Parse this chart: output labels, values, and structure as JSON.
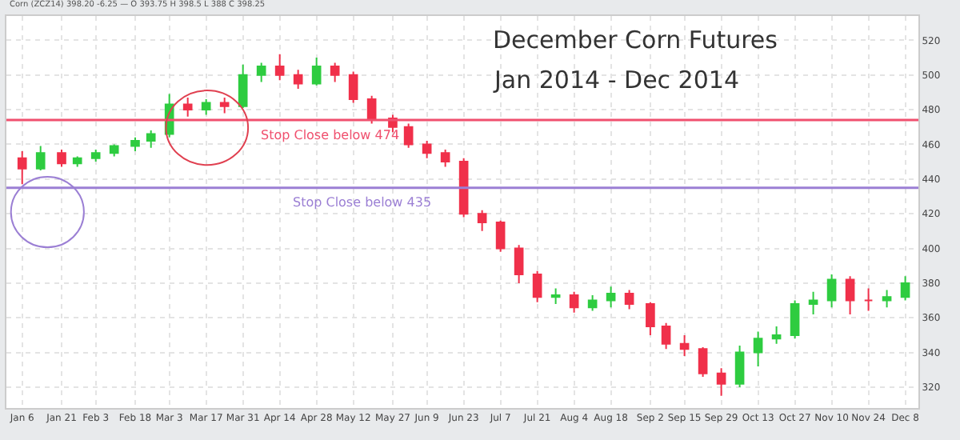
{
  "chart_data": {
    "type": "candlestick",
    "title": "December Corn Futures",
    "subtitle": "Jan 2014 - Dec 2014",
    "annotations": [
      "Corn (ZCZ14) 398.20 -6.25 — O 393.75 H 398.5 L 388 C 398.25"
    ],
    "x": [
      "2014-01-06",
      "2014-01-13",
      "2014-01-21",
      "2014-01-27",
      "2014-02-03",
      "2014-02-10",
      "2014-02-18",
      "2014-02-24",
      "2014-03-03",
      "2014-03-10",
      "2014-03-17",
      "2014-03-24",
      "2014-03-31",
      "2014-04-07",
      "2014-04-14",
      "2014-04-21",
      "2014-04-28",
      "2014-05-05",
      "2014-05-12",
      "2014-05-19",
      "2014-05-27",
      "2014-06-02",
      "2014-06-09",
      "2014-06-16",
      "2014-06-23",
      "2014-06-30",
      "2014-07-07",
      "2014-07-14",
      "2014-07-21",
      "2014-07-28",
      "2014-08-04",
      "2014-08-11",
      "2014-08-18",
      "2014-08-25",
      "2014-09-02",
      "2014-09-08",
      "2014-09-15",
      "2014-09-22",
      "2014-09-29",
      "2014-10-06",
      "2014-10-13",
      "2014-10-20",
      "2014-10-27",
      "2014-11-03",
      "2014-11-10",
      "2014-11-17",
      "2014-11-24",
      "2014-12-01",
      "2014-12-08"
    ],
    "ohlc": [
      [
        452,
        456,
        437,
        446
      ],
      [
        446,
        459,
        445,
        455
      ],
      [
        455,
        457,
        447,
        449
      ],
      [
        449,
        453,
        447,
        452
      ],
      [
        452,
        457,
        450,
        455
      ],
      [
        455,
        460,
        453,
        459
      ],
      [
        459,
        464,
        456,
        462
      ],
      [
        462,
        468,
        458,
        466
      ],
      [
        466,
        489,
        464,
        483
      ],
      [
        483,
        487,
        476,
        480
      ],
      [
        480,
        486,
        477,
        484
      ],
      [
        484,
        487,
        478,
        482
      ],
      [
        482,
        506,
        481,
        500
      ],
      [
        500,
        507,
        496,
        505
      ],
      [
        505,
        512,
        497,
        500
      ],
      [
        500,
        503,
        492,
        495
      ],
      [
        495,
        510,
        494,
        505
      ],
      [
        505,
        507,
        496,
        500
      ],
      [
        500,
        502,
        484,
        486
      ],
      [
        486,
        488,
        472,
        475
      ],
      [
        475,
        477,
        467,
        470
      ],
      [
        470,
        472,
        458,
        460
      ],
      [
        460,
        462,
        452,
        455
      ],
      [
        455,
        457,
        447,
        450
      ],
      [
        450,
        452,
        418,
        420
      ],
      [
        420,
        422,
        410,
        415
      ],
      [
        415,
        416,
        398,
        400
      ],
      [
        400,
        402,
        380,
        385
      ],
      [
        385,
        387,
        369,
        372
      ],
      [
        372,
        377,
        368,
        373
      ],
      [
        373,
        375,
        363,
        366
      ],
      [
        366,
        373,
        364,
        370
      ],
      [
        370,
        378,
        366,
        374
      ],
      [
        374,
        376,
        365,
        368
      ],
      [
        368,
        369,
        350,
        355
      ],
      [
        355,
        357,
        342,
        345
      ],
      [
        345,
        350,
        338,
        342
      ],
      [
        342,
        343,
        326,
        328
      ],
      [
        328,
        331,
        315,
        322
      ],
      [
        322,
        344,
        320,
        340
      ],
      [
        340,
        352,
        332,
        348
      ],
      [
        348,
        355,
        345,
        350
      ],
      [
        350,
        370,
        348,
        368
      ],
      [
        368,
        375,
        362,
        370
      ],
      [
        370,
        385,
        366,
        382
      ],
      [
        382,
        384,
        362,
        370
      ],
      [
        370,
        377,
        364,
        370
      ],
      [
        370,
        376,
        366,
        372
      ],
      [
        372,
        384,
        370,
        380
      ]
    ],
    "colors": [
      "#f0304a",
      "#2ecc40",
      "#f0304a",
      "#2ecc40",
      "#2ecc40",
      "#2ecc40",
      "#2ecc40",
      "#2ecc40",
      "#2ecc40",
      "#f0304a",
      "#2ecc40",
      "#f0304a",
      "#2ecc40",
      "#2ecc40",
      "#f0304a",
      "#f0304a",
      "#2ecc40",
      "#f0304a",
      "#f0304a",
      "#f0304a",
      "#f0304a",
      "#f0304a",
      "#f0304a",
      "#f0304a",
      "#f0304a",
      "#f0304a",
      "#f0304a",
      "#f0304a",
      "#f0304a",
      "#2ecc40",
      "#f0304a",
      "#2ecc40",
      "#2ecc40",
      "#f0304a",
      "#f0304a",
      "#f0304a",
      "#f0304a",
      "#f0304a",
      "#f0304a",
      "#2ecc40",
      "#2ecc40",
      "#2ecc40",
      "#2ecc40",
      "#2ecc40",
      "#2ecc40",
      "#f0304a",
      "#f0304a",
      "#2ecc40",
      "#2ecc40"
    ],
    "ref_lines": [
      {
        "axis": "y",
        "value": 474,
        "label": "Stop Close below 474",
        "color": "#f0506e"
      },
      {
        "axis": "y",
        "value": 435,
        "label": "Stop Close below 435",
        "color": "#9b7fd4"
      }
    ],
    "xlim": [
      "2013-12-31",
      "2014-12-13"
    ],
    "xticks": [
      {
        "value": "2014-01-06",
        "label": "Jan 6"
      },
      {
        "value": "2014-01-21",
        "label": "Jan 21"
      },
      {
        "value": "2014-02-03",
        "label": "Feb 3"
      },
      {
        "value": "2014-02-18",
        "label": "Feb 18"
      },
      {
        "value": "2014-03-03",
        "label": "Mar 3"
      },
      {
        "value": "2014-03-17",
        "label": "Mar 17"
      },
      {
        "value": "2014-03-31",
        "label": "Mar 31"
      },
      {
        "value": "2014-04-14",
        "label": "Apr 14"
      },
      {
        "value": "2014-04-28",
        "label": "Apr 28"
      },
      {
        "value": "2014-05-12",
        "label": "May 12"
      },
      {
        "value": "2014-05-27",
        "label": "May 27"
      },
      {
        "value": "2014-06-09",
        "label": "Jun 9"
      },
      {
        "value": "2014-06-23",
        "label": "Jun 23"
      },
      {
        "value": "2014-07-07",
        "label": "Jul 7"
      },
      {
        "value": "2014-07-21",
        "label": "Jul 21"
      },
      {
        "value": "2014-08-04",
        "label": "Aug 4"
      },
      {
        "value": "2014-08-18",
        "label": "Aug 18"
      },
      {
        "value": "2014-09-02",
        "label": "Sep 2"
      },
      {
        "value": "2014-09-15",
        "label": "Sep 15"
      },
      {
        "value": "2014-09-29",
        "label": "Sep 29"
      },
      {
        "value": "2014-10-13",
        "label": "Oct 13"
      },
      {
        "value": "2014-10-27",
        "label": "Oct 27"
      },
      {
        "value": "2014-11-10",
        "label": "Nov 10"
      },
      {
        "value": "2014-11-24",
        "label": "Nov 24"
      },
      {
        "value": "2014-12-08",
        "label": "Dec 8"
      }
    ],
    "ylim": [
      308,
      534
    ],
    "yticks": [
      320,
      340,
      360,
      380,
      400,
      420,
      440,
      460,
      480,
      500,
      520
    ],
    "grid": true
  }
}
